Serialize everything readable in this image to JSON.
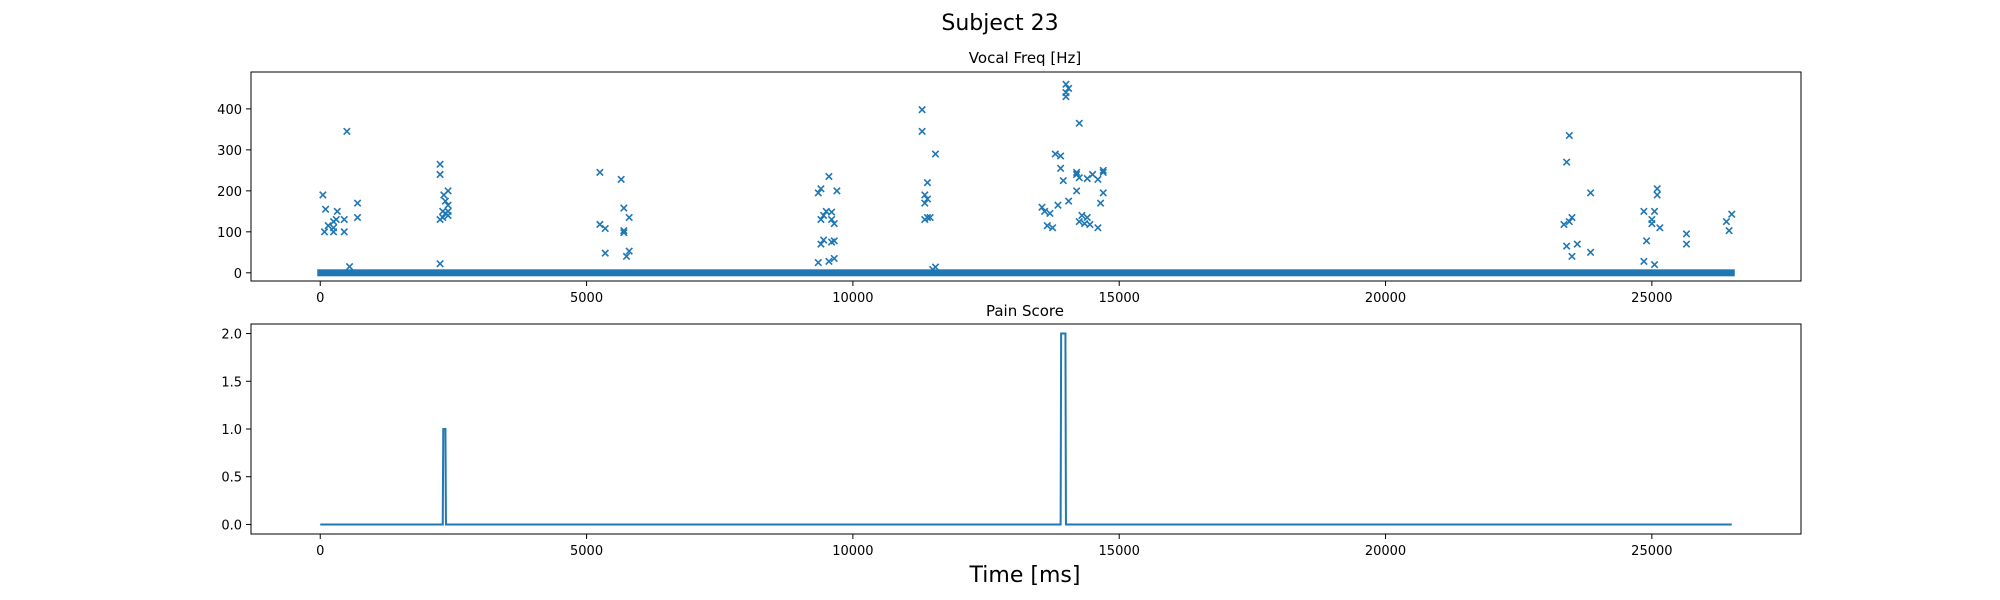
{
  "figure": {
    "title": "Subject 23",
    "xlabel": "Time [ms]"
  },
  "colors": {
    "series": "#1f77b4",
    "axis": "#000000"
  },
  "chart_data": [
    {
      "type": "scatter",
      "title": "Vocal Freq [Hz]",
      "xlim": [
        -1300,
        27800
      ],
      "ylim": [
        -20,
        490
      ],
      "xticks": [
        0,
        5000,
        10000,
        15000,
        20000,
        25000
      ],
      "yticks": [
        0,
        100,
        200,
        300,
        400
      ],
      "marker": "x",
      "baseline": {
        "value": 0,
        "x_start": 0,
        "x_end": 26500
      },
      "points": [
        [
          50,
          190
        ],
        [
          100,
          155
        ],
        [
          80,
          100
        ],
        [
          150,
          115
        ],
        [
          250,
          110
        ],
        [
          250,
          125
        ],
        [
          300,
          130
        ],
        [
          320,
          150
        ],
        [
          250,
          100
        ],
        [
          450,
          130
        ],
        [
          450,
          100
        ],
        [
          500,
          345
        ],
        [
          550,
          15
        ],
        [
          700,
          170
        ],
        [
          700,
          135
        ],
        [
          2250,
          265
        ],
        [
          2250,
          240
        ],
        [
          2250,
          22
        ],
        [
          2300,
          150
        ],
        [
          2320,
          190
        ],
        [
          2350,
          175
        ],
        [
          2300,
          135
        ],
        [
          2350,
          145
        ],
        [
          2250,
          130
        ],
        [
          2400,
          200
        ],
        [
          2400,
          165
        ],
        [
          2400,
          150
        ],
        [
          2400,
          140
        ],
        [
          5250,
          245
        ],
        [
          5250,
          118
        ],
        [
          5350,
          108
        ],
        [
          5350,
          48
        ],
        [
          5650,
          228
        ],
        [
          5700,
          158
        ],
        [
          5700,
          103
        ],
        [
          5700,
          98
        ],
        [
          5800,
          135
        ],
        [
          5800,
          53
        ],
        [
          5750,
          40
        ],
        [
          9350,
          195
        ],
        [
          9400,
          205
        ],
        [
          9400,
          130
        ],
        [
          9450,
          140
        ],
        [
          9500,
          150
        ],
        [
          9550,
          235
        ],
        [
          9600,
          148
        ],
        [
          9600,
          130
        ],
        [
          9650,
          120
        ],
        [
          9700,
          200
        ],
        [
          9400,
          70
        ],
        [
          9450,
          80
        ],
        [
          9600,
          75
        ],
        [
          9650,
          78
        ],
        [
          9350,
          25
        ],
        [
          9550,
          28
        ],
        [
          9650,
          35
        ],
        [
          11300,
          398
        ],
        [
          11300,
          345
        ],
        [
          11400,
          220
        ],
        [
          11350,
          190
        ],
        [
          11400,
          180
        ],
        [
          11350,
          170
        ],
        [
          11400,
          135
        ],
        [
          11350,
          130
        ],
        [
          11550,
          290
        ],
        [
          11450,
          135
        ],
        [
          11500,
          8
        ],
        [
          11550,
          14
        ],
        [
          13550,
          160
        ],
        [
          13600,
          150
        ],
        [
          13650,
          115
        ],
        [
          13700,
          145
        ],
        [
          13750,
          110
        ],
        [
          13800,
          290
        ],
        [
          13900,
          285
        ],
        [
          13900,
          255
        ],
        [
          13950,
          225
        ],
        [
          14000,
          430
        ],
        [
          14050,
          450
        ],
        [
          14000,
          460
        ],
        [
          14000,
          440
        ],
        [
          13850,
          165
        ],
        [
          14050,
          175
        ],
        [
          14200,
          245
        ],
        [
          14250,
          365
        ],
        [
          14200,
          240
        ],
        [
          14250,
          232
        ],
        [
          14200,
          200
        ],
        [
          14300,
          140
        ],
        [
          14350,
          120
        ],
        [
          14400,
          135
        ],
        [
          14400,
          230
        ],
        [
          14500,
          240
        ],
        [
          14600,
          110
        ],
        [
          14650,
          170
        ],
        [
          14600,
          228
        ],
        [
          14700,
          250
        ],
        [
          14700,
          245
        ],
        [
          14700,
          195
        ],
        [
          14250,
          125
        ],
        [
          14450,
          118
        ],
        [
          23350,
          118
        ],
        [
          23400,
          270
        ],
        [
          23450,
          335
        ],
        [
          23400,
          65
        ],
        [
          23450,
          125
        ],
        [
          23500,
          135
        ],
        [
          23500,
          40
        ],
        [
          23600,
          70
        ],
        [
          23850,
          195
        ],
        [
          23850,
          50
        ],
        [
          24850,
          150
        ],
        [
          24900,
          78
        ],
        [
          24850,
          28
        ],
        [
          25000,
          130
        ],
        [
          25050,
          150
        ],
        [
          25100,
          190
        ],
        [
          25050,
          20
        ],
        [
          25100,
          205
        ],
        [
          25150,
          110
        ],
        [
          25000,
          120
        ],
        [
          25650,
          95
        ],
        [
          25650,
          70
        ],
        [
          26400,
          125
        ],
        [
          26450,
          103
        ],
        [
          26500,
          143
        ]
      ]
    },
    {
      "type": "line",
      "title": "Pain Score",
      "xlim": [
        -1300,
        27800
      ],
      "ylim": [
        -0.1,
        2.1
      ],
      "xticks": [
        0,
        5000,
        10000,
        15000,
        20000,
        25000
      ],
      "yticks": [
        0.0,
        0.5,
        1.0,
        1.5,
        2.0
      ],
      "ytick_labels": [
        "0.0",
        "0.5",
        "1.0",
        "1.5",
        "2.0"
      ],
      "x": [
        0,
        2300,
        2310,
        2330,
        2350,
        2360,
        13900,
        13910,
        13930,
        13970,
        13990,
        14000,
        26500
      ],
      "y": [
        0,
        0,
        1,
        1,
        1,
        0,
        0,
        2,
        2,
        2,
        2,
        0,
        0
      ]
    }
  ]
}
